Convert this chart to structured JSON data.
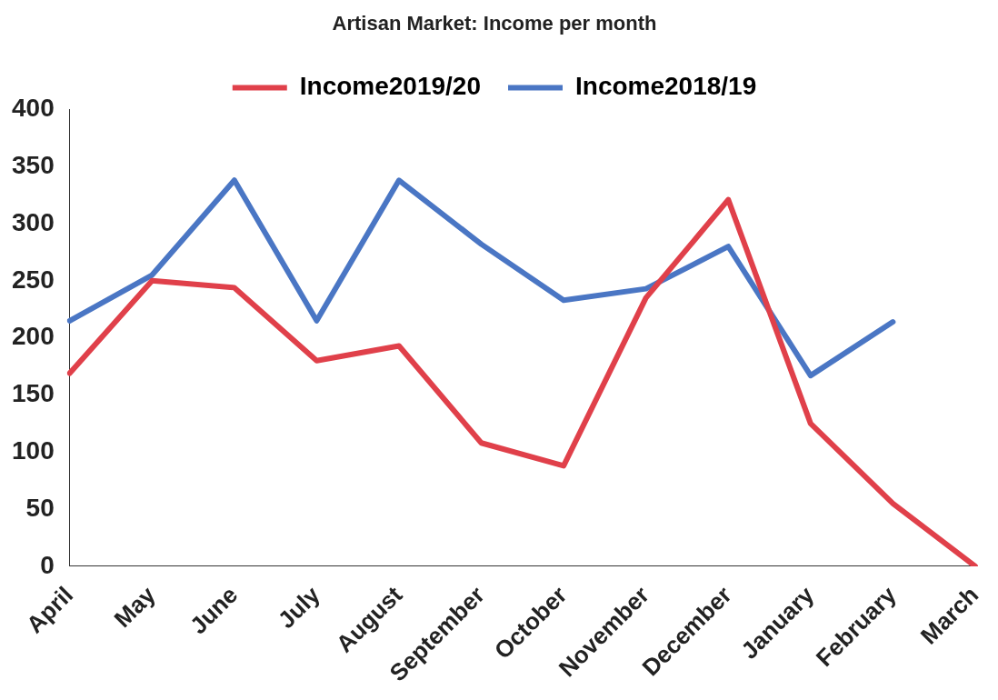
{
  "chart_data": {
    "type": "line",
    "title": "Artisan Market: Income per month",
    "categories": [
      "April",
      "May",
      "June",
      "July",
      "August",
      "September",
      "October",
      "November",
      "December",
      "January",
      "February",
      "March"
    ],
    "series": [
      {
        "name": "Income2019/20",
        "color": "#e0404a",
        "values": [
          169,
          250,
          244,
          180,
          193,
          108,
          88,
          235,
          321,
          125,
          55,
          0
        ]
      },
      {
        "name": "Income2018/19",
        "color": "#4a76c4",
        "values": [
          215,
          255,
          338,
          215,
          338,
          282,
          233,
          243,
          280,
          167,
          214,
          null
        ]
      }
    ],
    "ylim": [
      0,
      400
    ],
    "yticks": [
      0,
      50,
      100,
      150,
      200,
      250,
      300,
      350,
      400
    ],
    "grid": false,
    "legend": "top",
    "marker": "none",
    "line_style": "solid"
  }
}
